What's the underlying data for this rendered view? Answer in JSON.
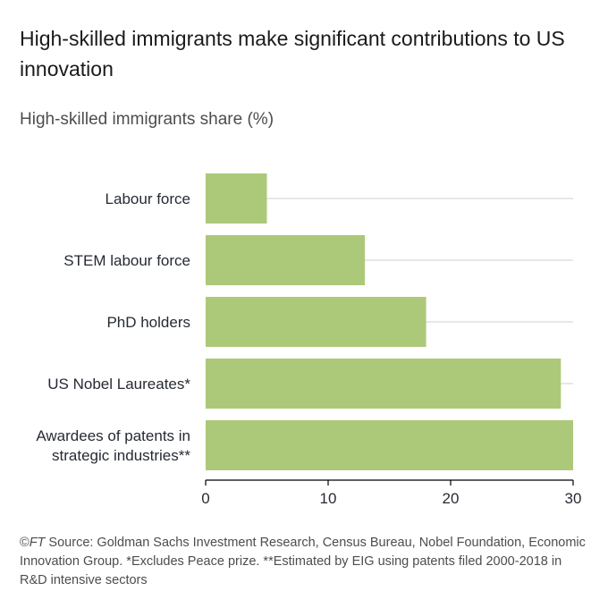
{
  "title": "High-skilled immigrants make significant contributions to US innovation",
  "subtitle": "High-skilled immigrants share (%)",
  "footer": {
    "copyright": "©",
    "brand": "FT",
    "text": " Source: Goldman Sachs Investment Research, Census Bureau, Nobel Foundation, Economic Innovation Group. *Excludes Peace prize. **Estimated by EIG using patents filed 2000-2018 in R&D intensive sectors"
  },
  "colors": {
    "bar": "#acc97a",
    "grid": "#cfcfcf",
    "text": "#262a33"
  },
  "chart_data": {
    "type": "bar",
    "orientation": "horizontal",
    "categories": [
      [
        "Labour force"
      ],
      [
        "STEM labour force"
      ],
      [
        "PhD holders"
      ],
      [
        "US Nobel Laureates*"
      ],
      [
        "Awardees of patents in",
        "strategic industries**"
      ]
    ],
    "values": [
      5,
      13,
      18,
      29,
      30
    ],
    "xlim": [
      0,
      30
    ],
    "xticks": [
      "0",
      "10",
      "20",
      "30"
    ],
    "xlabel": "",
    "ylabel": "",
    "grid": true
  }
}
